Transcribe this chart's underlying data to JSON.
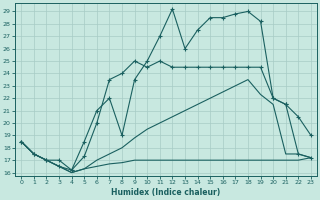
{
  "xlabel": "Humidex (Indice chaleur)",
  "xlim": [
    -0.5,
    23.5
  ],
  "ylim": [
    15.7,
    29.7
  ],
  "yticks": [
    16,
    17,
    18,
    19,
    20,
    21,
    22,
    23,
    24,
    25,
    26,
    27,
    28,
    29
  ],
  "xticks": [
    0,
    1,
    2,
    3,
    4,
    5,
    6,
    7,
    8,
    9,
    10,
    11,
    12,
    13,
    14,
    15,
    16,
    17,
    18,
    19,
    20,
    21,
    22,
    23
  ],
  "bg_color": "#c8e8e0",
  "line_color": "#1a6060",
  "grid_color": "#a8ccc6",
  "line1_x": [
    0,
    1,
    2,
    3,
    4,
    5,
    6,
    7,
    8,
    9,
    10,
    11,
    12,
    13,
    14,
    15,
    16,
    17,
    18,
    19,
    20,
    21,
    22,
    23
  ],
  "line1_y": [
    18.5,
    17.5,
    17.0,
    16.5,
    16.2,
    18.5,
    21.0,
    22.0,
    19.0,
    23.5,
    25.0,
    27.0,
    29.2,
    26.0,
    27.5,
    28.5,
    28.5,
    28.8,
    29.0,
    28.2,
    22.0,
    21.5,
    20.5,
    19.0
  ],
  "line2_x": [
    0,
    1,
    2,
    3,
    4,
    5,
    6,
    7,
    8,
    9,
    10,
    11,
    12,
    13,
    14,
    15,
    16,
    17,
    18,
    19,
    20,
    21,
    22,
    23
  ],
  "line2_y": [
    18.5,
    17.5,
    17.0,
    17.0,
    16.2,
    17.3,
    20.0,
    23.5,
    24.0,
    25.0,
    24.5,
    25.0,
    24.5,
    24.5,
    24.5,
    24.5,
    24.5,
    24.5,
    24.5,
    24.5,
    22.0,
    21.5,
    17.5,
    17.2
  ],
  "line3_x": [
    0,
    1,
    2,
    3,
    4,
    5,
    6,
    7,
    8,
    9,
    10,
    11,
    12,
    13,
    14,
    15,
    16,
    17,
    18,
    19,
    20,
    21,
    22,
    23
  ],
  "line3_y": [
    18.5,
    17.5,
    17.0,
    16.5,
    16.0,
    16.3,
    17.0,
    17.5,
    18.0,
    18.8,
    19.5,
    20.0,
    20.5,
    21.0,
    21.5,
    22.0,
    22.5,
    23.0,
    23.5,
    22.3,
    21.5,
    17.5,
    17.5,
    17.2
  ],
  "line4_x": [
    0,
    1,
    2,
    3,
    4,
    5,
    6,
    7,
    8,
    9,
    10,
    11,
    12,
    13,
    14,
    15,
    16,
    17,
    18,
    19,
    20,
    21,
    22,
    23
  ],
  "line4_y": [
    18.5,
    17.5,
    17.0,
    16.5,
    16.0,
    16.3,
    16.5,
    16.7,
    16.8,
    17.0,
    17.0,
    17.0,
    17.0,
    17.0,
    17.0,
    17.0,
    17.0,
    17.0,
    17.0,
    17.0,
    17.0,
    17.0,
    17.0,
    17.2
  ]
}
